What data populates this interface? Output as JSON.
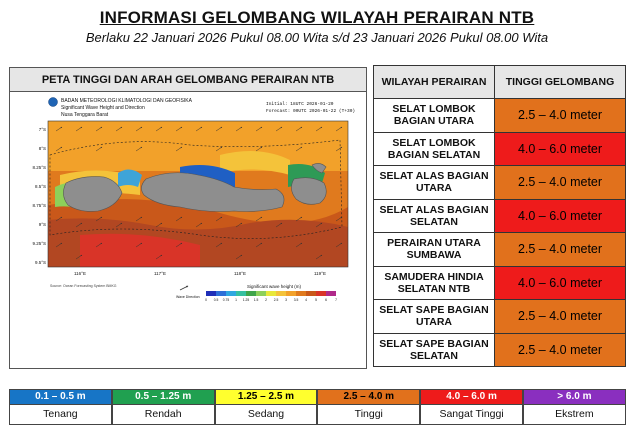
{
  "title": "INFORMASI GELOMBANG WILAYAH PERAIRAN NTB",
  "subtitle": "Berlaku 22 Januari 2026 Pukul 08.00 Wita s/d 23 Januari 2026 Pukul 08.00 Wita",
  "map": {
    "header": "PETA TINGGI DAN ARAH GELOMBANG PERAIRAN NTB",
    "agency": "BADAN METEOROLOGI KLIMATOLOGI DAN GEOFISIKA",
    "product": "Significant Wave Height and Direction",
    "region": "Nusa Tenggara Barat",
    "initial": "Initial: 18UTC 2026-01-20",
    "forecast": "Forecast: 00UTC 2026-01-22 (T+30)",
    "lat_labels": [
      "7°S",
      "8°S",
      "8.25°S",
      "8.5°S",
      "8.75°S",
      "9°S",
      "9.25°S",
      "9.5°S"
    ],
    "lon_labels": [
      "116°E",
      "117°E",
      "118°E",
      "119°E"
    ],
    "colorbar_title": "Significant wave height (m)",
    "colorbar_ticks": [
      "0",
      "0.5",
      "0.75",
      "1",
      "1.25",
      "1.5",
      "2",
      "2.5",
      "3",
      "3.5",
      "4",
      "5",
      "6",
      "7"
    ],
    "arrow_label": "Wave Direction",
    "credit": "Source: Ocean Forecasting System BMKG"
  },
  "table": {
    "col1": "WILAYAH PERAIRAN",
    "col2": "TINGGI GELOMBANG",
    "rows": [
      {
        "area": "SELAT LOMBOK BAGIAN UTARA",
        "value": "2.5 – 4.0 meter",
        "color": "#e1711c"
      },
      {
        "area": "SELAT LOMBOK BAGIAN SELATAN",
        "value": "4.0 – 6.0 meter",
        "color": "#ee1b1b"
      },
      {
        "area": "SELAT ALAS BAGIAN UTARA",
        "value": "2.5 – 4.0 meter",
        "color": "#e1711c"
      },
      {
        "area": "SELAT ALAS BAGIAN SELATAN",
        "value": "4.0 – 6.0 meter",
        "color": "#ee1b1b"
      },
      {
        "area": "PERAIRAN UTARA SUMBAWA",
        "value": "2.5 – 4.0 meter",
        "color": "#e1711c"
      },
      {
        "area": "SAMUDERA HINDIA SELATAN NTB",
        "value": "4.0 – 6.0 meter",
        "color": "#ee1b1b"
      },
      {
        "area": "SELAT SAPE BAGIAN UTARA",
        "value": "2.5 – 4.0 meter",
        "color": "#e1711c"
      },
      {
        "area": "SELAT SAPE BAGIAN SELATAN",
        "value": "2.5 – 4.0 meter",
        "color": "#e1711c"
      }
    ]
  },
  "legend": [
    {
      "range": "0.1 – 0.5 m",
      "name": "Tenang",
      "color": "#1775c6",
      "text_color": "#ffffff"
    },
    {
      "range": "0.5 – 1.25 m",
      "name": "Rendah",
      "color": "#20a050",
      "text_color": "#ffffff"
    },
    {
      "range": "1.25 – 2.5 m",
      "name": "Sedang",
      "color": "#ffff2e",
      "text_color": "#000000"
    },
    {
      "range": "2.5 – 4.0 m",
      "name": "Tinggi",
      "color": "#e1711c",
      "text_color": "#000000"
    },
    {
      "range": "4.0 – 6.0 m",
      "name": "Sangat Tinggi",
      "color": "#ee1b1b",
      "text_color": "#ffffff"
    },
    {
      "range": "> 6.0 m",
      "name": "Ekstrem",
      "color": "#8a2fbf",
      "text_color": "#ffffff"
    }
  ]
}
